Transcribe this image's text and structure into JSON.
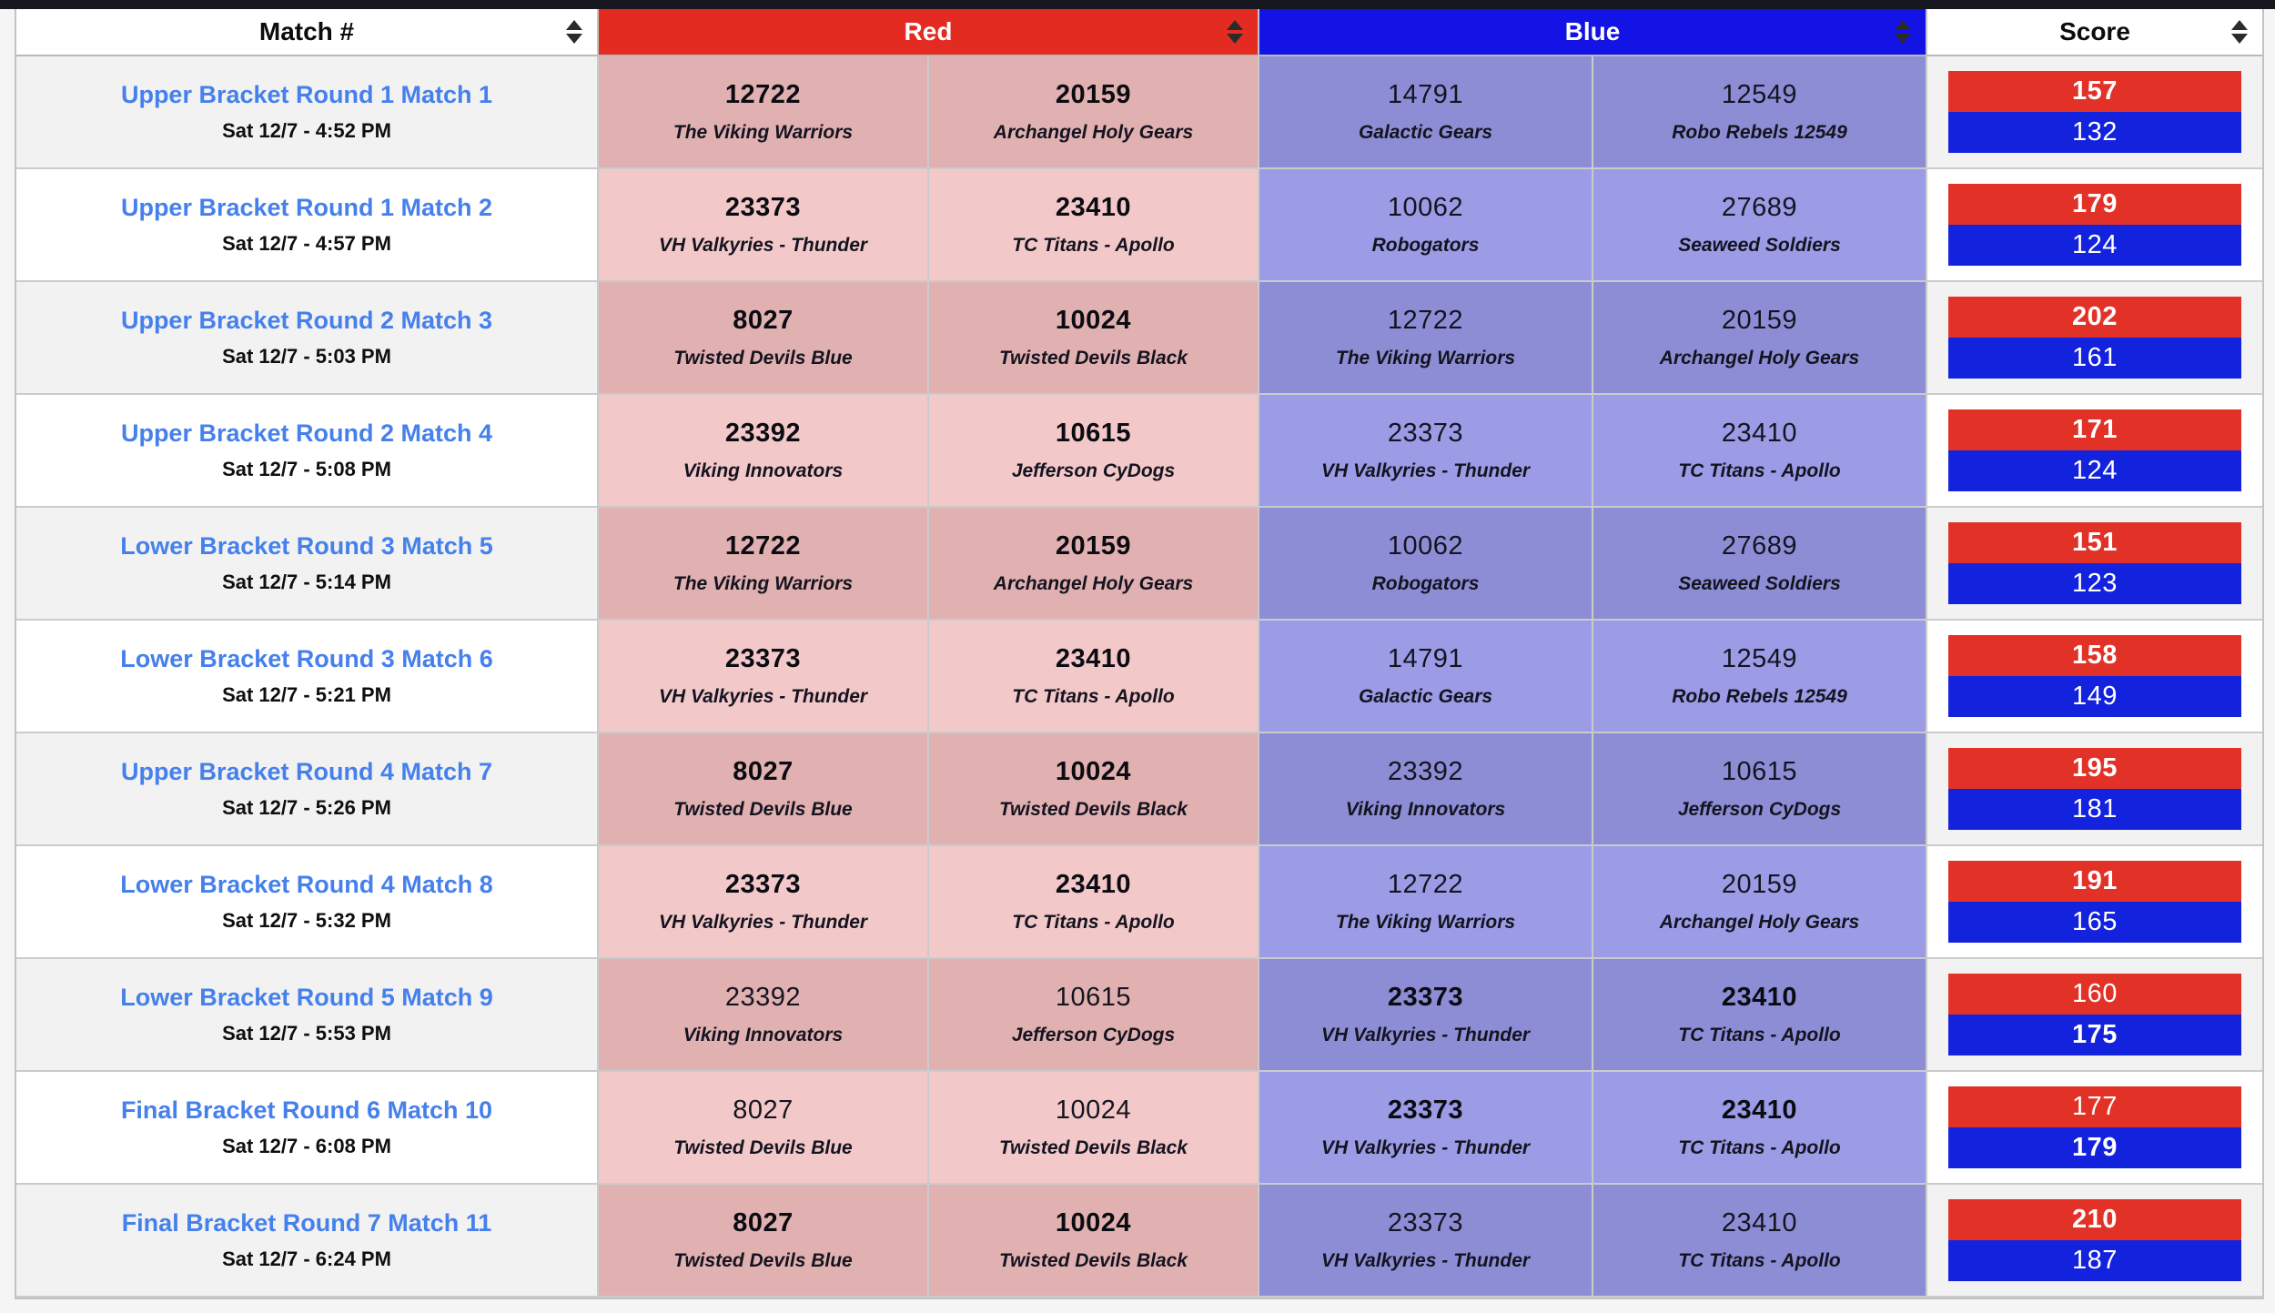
{
  "colors": {
    "top-bar": "#17171f",
    "red-header": "#e32b22",
    "blue-header": "#1213e4",
    "red-bar": "#e23228",
    "blue-bar": "#1322dd",
    "red-cell": "#f3c8c8",
    "red-cell-striped": "#e1b0b0",
    "blue-cell": "#9b9be6",
    "blue-cell-striped": "#8d8dd6",
    "link": "#4580ec",
    "stripe": "#f2f2f2"
  },
  "header": {
    "match_label": "Match #",
    "red_label": "Red",
    "blue_label": "Blue",
    "score_label": "Score"
  },
  "matches": [
    {
      "name": "Upper Bracket Round 1 Match 1",
      "time": "Sat 12/7 - 4:52 PM",
      "red_teams": [
        {
          "number": "12722",
          "name": "The Viking Warriors"
        },
        {
          "number": "20159",
          "name": "Archangel Holy Gears"
        }
      ],
      "blue_teams": [
        {
          "number": "14791",
          "name": "Galactic Gears"
        },
        {
          "number": "12549",
          "name": "Robo Rebels 12549"
        }
      ],
      "red_score": "157",
      "blue_score": "132",
      "winner": "red"
    },
    {
      "name": "Upper Bracket Round 1 Match 2",
      "time": "Sat 12/7 - 4:57 PM",
      "red_teams": [
        {
          "number": "23373",
          "name": "VH Valkyries - Thunder"
        },
        {
          "number": "23410",
          "name": "TC Titans - Apollo"
        }
      ],
      "blue_teams": [
        {
          "number": "10062",
          "name": "Robogators"
        },
        {
          "number": "27689",
          "name": "Seaweed Soldiers"
        }
      ],
      "red_score": "179",
      "blue_score": "124",
      "winner": "red"
    },
    {
      "name": "Upper Bracket Round 2 Match 3",
      "time": "Sat 12/7 - 5:03 PM",
      "red_teams": [
        {
          "number": "8027",
          "name": "Twisted Devils Blue"
        },
        {
          "number": "10024",
          "name": "Twisted Devils Black"
        }
      ],
      "blue_teams": [
        {
          "number": "12722",
          "name": "The Viking Warriors"
        },
        {
          "number": "20159",
          "name": "Archangel Holy Gears"
        }
      ],
      "red_score": "202",
      "blue_score": "161",
      "winner": "red"
    },
    {
      "name": "Upper Bracket Round 2 Match 4",
      "time": "Sat 12/7 - 5:08 PM",
      "red_teams": [
        {
          "number": "23392",
          "name": "Viking Innovators"
        },
        {
          "number": "10615",
          "name": "Jefferson CyDogs"
        }
      ],
      "blue_teams": [
        {
          "number": "23373",
          "name": "VH Valkyries - Thunder"
        },
        {
          "number": "23410",
          "name": "TC Titans - Apollo"
        }
      ],
      "red_score": "171",
      "blue_score": "124",
      "winner": "red"
    },
    {
      "name": "Lower Bracket Round 3 Match 5",
      "time": "Sat 12/7 - 5:14 PM",
      "red_teams": [
        {
          "number": "12722",
          "name": "The Viking Warriors"
        },
        {
          "number": "20159",
          "name": "Archangel Holy Gears"
        }
      ],
      "blue_teams": [
        {
          "number": "10062",
          "name": "Robogators"
        },
        {
          "number": "27689",
          "name": "Seaweed Soldiers"
        }
      ],
      "red_score": "151",
      "blue_score": "123",
      "winner": "red"
    },
    {
      "name": "Lower Bracket Round 3 Match 6",
      "time": "Sat 12/7 - 5:21 PM",
      "red_teams": [
        {
          "number": "23373",
          "name": "VH Valkyries - Thunder"
        },
        {
          "number": "23410",
          "name": "TC Titans - Apollo"
        }
      ],
      "blue_teams": [
        {
          "number": "14791",
          "name": "Galactic Gears"
        },
        {
          "number": "12549",
          "name": "Robo Rebels 12549"
        }
      ],
      "red_score": "158",
      "blue_score": "149",
      "winner": "red"
    },
    {
      "name": "Upper Bracket Round 4 Match 7",
      "time": "Sat 12/7 - 5:26 PM",
      "red_teams": [
        {
          "number": "8027",
          "name": "Twisted Devils Blue"
        },
        {
          "number": "10024",
          "name": "Twisted Devils Black"
        }
      ],
      "blue_teams": [
        {
          "number": "23392",
          "name": "Viking Innovators"
        },
        {
          "number": "10615",
          "name": "Jefferson CyDogs"
        }
      ],
      "red_score": "195",
      "blue_score": "181",
      "winner": "red"
    },
    {
      "name": "Lower Bracket Round 4 Match 8",
      "time": "Sat 12/7 - 5:32 PM",
      "red_teams": [
        {
          "number": "23373",
          "name": "VH Valkyries - Thunder"
        },
        {
          "number": "23410",
          "name": "TC Titans - Apollo"
        }
      ],
      "blue_teams": [
        {
          "number": "12722",
          "name": "The Viking Warriors"
        },
        {
          "number": "20159",
          "name": "Archangel Holy Gears"
        }
      ],
      "red_score": "191",
      "blue_score": "165",
      "winner": "red"
    },
    {
      "name": "Lower Bracket Round 5 Match 9",
      "time": "Sat 12/7 - 5:53 PM",
      "red_teams": [
        {
          "number": "23392",
          "name": "Viking Innovators"
        },
        {
          "number": "10615",
          "name": "Jefferson CyDogs"
        }
      ],
      "blue_teams": [
        {
          "number": "23373",
          "name": "VH Valkyries - Thunder"
        },
        {
          "number": "23410",
          "name": "TC Titans - Apollo"
        }
      ],
      "red_score": "160",
      "blue_score": "175",
      "winner": "blue"
    },
    {
      "name": "Final Bracket Round 6 Match 10",
      "time": "Sat 12/7 - 6:08 PM",
      "red_teams": [
        {
          "number": "8027",
          "name": "Twisted Devils Blue"
        },
        {
          "number": "10024",
          "name": "Twisted Devils Black"
        }
      ],
      "blue_teams": [
        {
          "number": "23373",
          "name": "VH Valkyries - Thunder"
        },
        {
          "number": "23410",
          "name": "TC Titans - Apollo"
        }
      ],
      "red_score": "177",
      "blue_score": "179",
      "winner": "blue"
    },
    {
      "name": "Final Bracket Round 7 Match 11",
      "time": "Sat 12/7 - 6:24 PM",
      "red_teams": [
        {
          "number": "8027",
          "name": "Twisted Devils Blue"
        },
        {
          "number": "10024",
          "name": "Twisted Devils Black"
        }
      ],
      "blue_teams": [
        {
          "number": "23373",
          "name": "VH Valkyries - Thunder"
        },
        {
          "number": "23410",
          "name": "TC Titans - Apollo"
        }
      ],
      "red_score": "210",
      "blue_score": "187",
      "winner": "red"
    }
  ]
}
